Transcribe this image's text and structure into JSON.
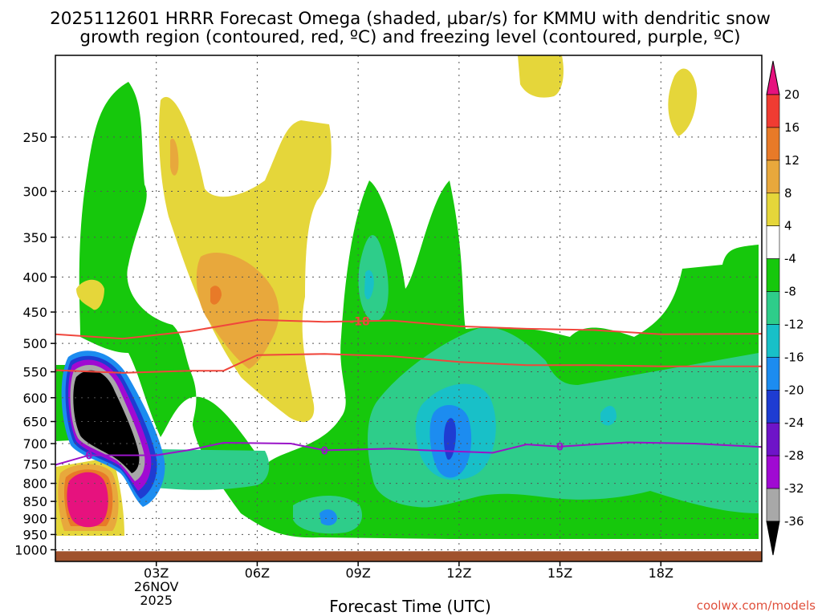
{
  "chart_data": {
    "type": "time-height cross-section",
    "title_line1": "2025112601 HRRR Forecast Omega (shaded, µbar/s) for KMMU with dendritic snow",
    "title_line2": "growth region (contoured, red, ºC) and freezing level (contoured, purple, ºC)",
    "xlabel": "Forecast Time (UTC)",
    "xlim_hours_after_00Z": [
      0.0,
      21.0
    ],
    "x_ticks": [
      {
        "label": "03Z",
        "hour": 3,
        "date_lines": [
          "26NOV",
          "2025"
        ]
      },
      {
        "label": "06Z",
        "hour": 6
      },
      {
        "label": "09Z",
        "hour": 9
      },
      {
        "label": "12Z",
        "hour": 12
      },
      {
        "label": "15Z",
        "hour": 15
      },
      {
        "label": "18Z",
        "hour": 18
      }
    ],
    "ylabel": "",
    "y_axis": "pressure (hPa), log scale, inverted",
    "ylim_hpa": [
      1040,
      190
    ],
    "y_ticks": [
      250,
      300,
      350,
      400,
      450,
      500,
      550,
      600,
      650,
      700,
      750,
      800,
      850,
      900,
      950,
      1000
    ],
    "grid": true,
    "colorbar": {
      "levels": [
        20,
        16,
        12,
        8,
        4,
        -4,
        -8,
        -12,
        -16,
        -20,
        -24,
        -28,
        -32,
        -36
      ],
      "bins": [
        {
          "range": ">20",
          "color": "#e6127e"
        },
        {
          "range": "16 to 20",
          "color": "#f03c32"
        },
        {
          "range": "12 to 16",
          "color": "#e87a28"
        },
        {
          "range": "8 to 12",
          "color": "#e8a83c"
        },
        {
          "range": "4 to 8",
          "color": "#e5d63a"
        },
        {
          "range": "-4 to 4",
          "color": "#ffffff"
        },
        {
          "range": "-8 to -4",
          "color": "#16c80c"
        },
        {
          "range": "-12 to -8",
          "color": "#2ecd8a"
        },
        {
          "range": "-16 to -12",
          "color": "#18c0c8"
        },
        {
          "range": "-20 to -16",
          "color": "#1c8cf0"
        },
        {
          "range": "-24 to -20",
          "color": "#1e3cd2"
        },
        {
          "range": "-28 to -24",
          "color": "#6e14c8"
        },
        {
          "range": "-32 to -28",
          "color": "#a00ad2"
        },
        {
          "range": "-36 to -32",
          "color": "#a8a8a8"
        },
        {
          "range": "<-36",
          "color": "#000000"
        }
      ]
    },
    "contours": {
      "dendritic_growth_zone": {
        "color": "#f0463c",
        "label": "-18",
        "upper": [
          [
            0,
            485
          ],
          [
            2,
            492
          ],
          [
            4,
            480
          ],
          [
            6,
            462
          ],
          [
            8,
            465
          ],
          [
            10,
            463
          ],
          [
            12,
            472
          ],
          [
            14,
            476
          ],
          [
            16,
            478
          ],
          [
            18,
            485
          ],
          [
            21,
            484
          ]
        ],
        "lower": [
          [
            0,
            547
          ],
          [
            2,
            552
          ],
          [
            4,
            548
          ],
          [
            5,
            548
          ],
          [
            6,
            520
          ],
          [
            8,
            518
          ],
          [
            10,
            522
          ],
          [
            12,
            532
          ],
          [
            14,
            538
          ],
          [
            16,
            538
          ],
          [
            18,
            540
          ],
          [
            21,
            540
          ]
        ]
      },
      "freezing_level": {
        "color": "#9a14c8",
        "label": "0",
        "points": [
          [
            0,
            752
          ],
          [
            1,
            728
          ],
          [
            3,
            728
          ],
          [
            4,
            715
          ],
          [
            5,
            698
          ],
          [
            7,
            700
          ],
          [
            8,
            716
          ],
          [
            10,
            712
          ],
          [
            11,
            716
          ],
          [
            13,
            722
          ],
          [
            14,
            702
          ],
          [
            15,
            707
          ],
          [
            17,
            697
          ],
          [
            19,
            700
          ],
          [
            21,
            708
          ]
        ]
      }
    },
    "terrain_color": "#a0522d",
    "terrain_top_hpa": 1005
  },
  "credit": "coolwx.com/models"
}
